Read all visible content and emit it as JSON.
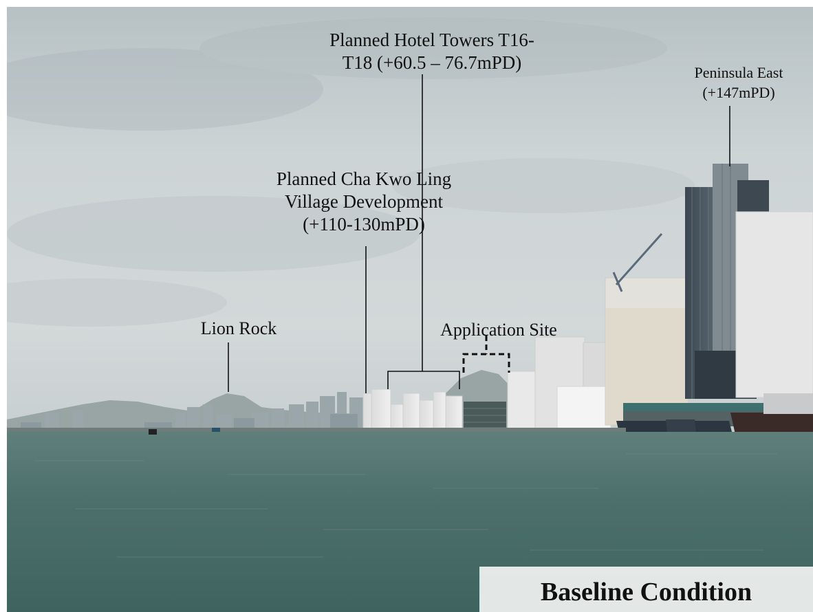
{
  "labels": {
    "hotel_towers": [
      "Planned Hotel Towers T16-",
      "T18 (+60.5 – 76.7mPD)"
    ],
    "cha_kwo_ling": [
      "Planned Cha Kwo Ling",
      "Village Development",
      "(+110-130mPD)"
    ],
    "lion_rock": "Lion Rock",
    "application_site": "Application Site",
    "peninsula_east": [
      "Peninsula East",
      "(+147mPD)"
    ]
  },
  "caption": "Baseline Condition",
  "colors": {
    "sky": "#c9d1d3",
    "water": "#4b6e6a",
    "massing": "#e6e6e6",
    "leader_line": "#111111"
  }
}
